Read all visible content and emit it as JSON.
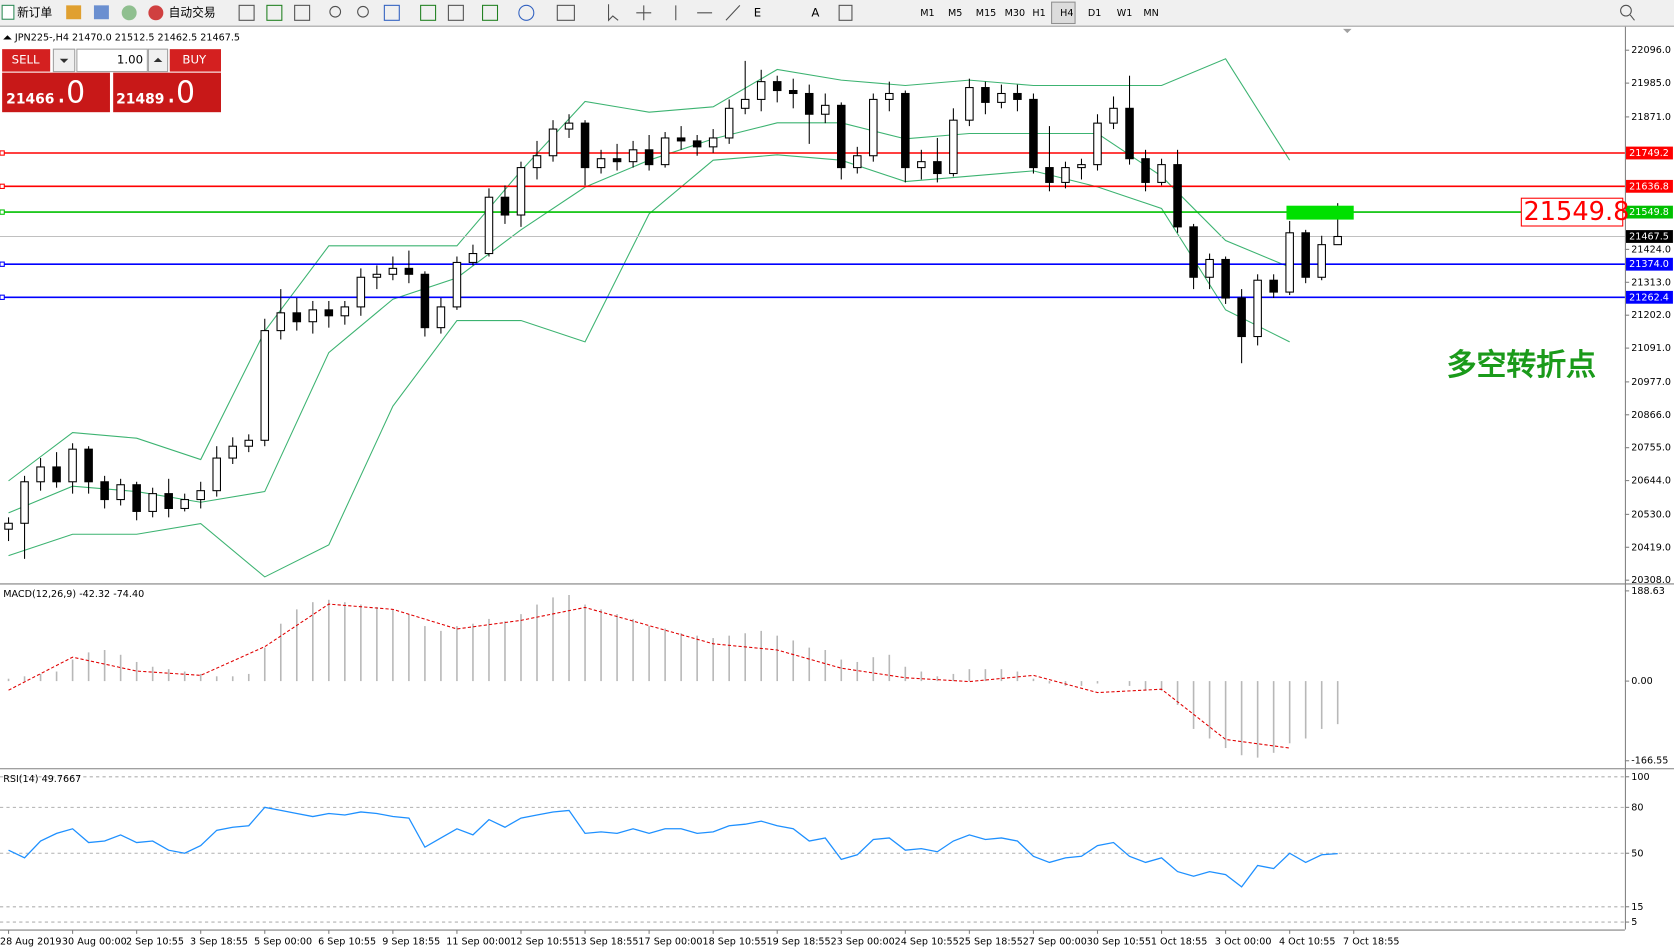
{
  "toolbar": {
    "new_order": "新订单",
    "auto_trading": "自动交易",
    "timeframes": [
      "M1",
      "M5",
      "M15",
      "M30",
      "H1",
      "H4",
      "D1",
      "W1",
      "MN"
    ]
  },
  "trade_panel": {
    "sell": "SELL",
    "lots": "1.00",
    "buy": "BUY",
    "bid": "21466",
    "bid_fraction": ".0",
    "ask": "21489",
    "ask_fraction": ".0"
  },
  "chart_data": [
    {
      "type": "candlestick",
      "title": "JPN225-,H4 21470.0 21512.5 21462.5 21467.5",
      "annotation": "多空转折点",
      "ylim": [
        20300.8,
        22168.1
      ],
      "yticks": [
        {
          "value": 22096,
          "label": "22096.0"
        },
        {
          "value": 21985,
          "label": "21985.0"
        },
        {
          "value": 21871,
          "label": "21871.0"
        },
        {
          "value": 21424,
          "label": "21424.0"
        },
        {
          "value": 21313,
          "label": "21313.0"
        },
        {
          "value": 21202,
          "label": "21202.0"
        },
        {
          "value": 21091,
          "label": "21091.0"
        },
        {
          "value": 20977,
          "label": "20977.0"
        },
        {
          "value": 20866,
          "label": "20866.0"
        },
        {
          "value": 20755,
          "label": "20755.0"
        },
        {
          "value": 20644,
          "label": "20644.0"
        },
        {
          "value": 20530,
          "label": "20530.0"
        },
        {
          "value": 20419,
          "label": "20419.0"
        },
        {
          "value": 20308,
          "label": "20308.0"
        }
      ],
      "xtick_labels": [
        "28 Aug 2019",
        "30 Aug 00:00",
        "2 Sep 10:55",
        "3 Sep 18:55",
        "5 Sep 00:00",
        "6 Sep 10:55",
        "9 Sep 18:55",
        "11 Sep 00:00",
        "12 Sep 10:55",
        "13 Sep 18:55",
        "17 Sep 00:00",
        "18 Sep 10:55",
        "19 Sep 18:55",
        "23 Sep 00:00",
        "24 Sep 10:55",
        "25 Sep 18:55",
        "27 Sep 00:00",
        "30 Sep 10:55",
        "1 Oct 18:55",
        "3 Oct 00:00",
        "4 Oct 10:55",
        "7 Oct 18:55"
      ],
      "levels": [
        {
          "value": 21749.2,
          "color": "#ff0000"
        },
        {
          "value": 21636.8,
          "color": "#ff0000"
        },
        {
          "value": 21549.8,
          "color": "#00c000"
        },
        {
          "value": 21374,
          "label": "21374.0",
          "color": "#0000ff"
        },
        {
          "value": 21262.4,
          "color": "#0000ff"
        }
      ],
      "current": 21467.5,
      "band_color": "#3cb371",
      "bands": {
        "upper": [
          20643,
          20806,
          20787,
          20715,
          21148,
          21436,
          21436,
          21436,
          21689,
          21923,
          21887,
          21905,
          22031,
          21995,
          21977,
          21995,
          21977,
          21977,
          21977,
          22067,
          21725
        ],
        "middle": [
          20535,
          20625,
          20607,
          20571,
          20607,
          21076,
          21256,
          21328,
          21490,
          21634,
          21725,
          21797,
          21851,
          21851,
          21797,
          21815,
          21815,
          21815,
          21671,
          21454,
          21364
        ],
        "lower": [
          20391,
          20463,
          20463,
          20499,
          20319,
          20427,
          20895,
          21184,
          21184,
          21112,
          21544,
          21725,
          21743,
          21725,
          21653,
          21671,
          21689,
          21635,
          21562,
          21220,
          21112
        ]
      },
      "candles": [
        [
          20480,
          20520,
          20440,
          20500
        ],
        [
          20500,
          20660,
          20380,
          20640
        ],
        [
          20640,
          20720,
          20610,
          20690
        ],
        [
          20690,
          20740,
          20620,
          20640
        ],
        [
          20640,
          20770,
          20600,
          20750
        ],
        [
          20750,
          20760,
          20600,
          20640
        ],
        [
          20640,
          20660,
          20550,
          20580
        ],
        [
          20580,
          20650,
          20560,
          20630
        ],
        [
          20630,
          20640,
          20510,
          20540
        ],
        [
          20540,
          20620,
          20520,
          20600
        ],
        [
          20600,
          20650,
          20520,
          20550
        ],
        [
          20550,
          20600,
          20540,
          20580
        ],
        [
          20580,
          20640,
          20550,
          20610
        ],
        [
          20610,
          20760,
          20590,
          20720
        ],
        [
          20720,
          20790,
          20700,
          20760
        ],
        [
          20760,
          20800,
          20740,
          20780
        ],
        [
          20780,
          21190,
          20760,
          21150
        ],
        [
          21150,
          21290,
          21120,
          21210
        ],
        [
          21210,
          21260,
          21150,
          21180
        ],
        [
          21180,
          21250,
          21140,
          21220
        ],
        [
          21220,
          21250,
          21160,
          21200
        ],
        [
          21200,
          21250,
          21170,
          21230
        ],
        [
          21230,
          21360,
          21200,
          21330
        ],
        [
          21330,
          21370,
          21290,
          21340
        ],
        [
          21340,
          21400,
          21320,
          21360
        ],
        [
          21360,
          21420,
          21310,
          21340
        ],
        [
          21340,
          21350,
          21130,
          21160
        ],
        [
          21160,
          21260,
          21140,
          21230
        ],
        [
          21230,
          21400,
          21220,
          21380
        ],
        [
          21380,
          21440,
          21370,
          21410
        ],
        [
          21410,
          21630,
          21400,
          21600
        ],
        [
          21600,
          21640,
          21510,
          21540
        ],
        [
          21540,
          21720,
          21500,
          21700
        ],
        [
          21700,
          21790,
          21660,
          21740
        ],
        [
          21740,
          21860,
          21720,
          21830
        ],
        [
          21830,
          21880,
          21800,
          21850
        ],
        [
          21850,
          21860,
          21640,
          21700
        ],
        [
          21700,
          21760,
          21680,
          21730
        ],
        [
          21730,
          21780,
          21690,
          21720
        ],
        [
          21720,
          21790,
          21700,
          21760
        ],
        [
          21760,
          21810,
          21690,
          21710
        ],
        [
          21710,
          21820,
          21700,
          21800
        ],
        [
          21800,
          21840,
          21760,
          21790
        ],
        [
          21790,
          21810,
          21740,
          21770
        ],
        [
          21770,
          21830,
          21750,
          21800
        ],
        [
          21800,
          21930,
          21780,
          21900
        ],
        [
          21900,
          22060,
          21880,
          21930
        ],
        [
          21930,
          22030,
          21890,
          21990
        ],
        [
          21990,
          22010,
          21920,
          21960
        ],
        [
          21960,
          22000,
          21900,
          21950
        ],
        [
          21950,
          21980,
          21780,
          21880
        ],
        [
          21880,
          21950,
          21850,
          21910
        ],
        [
          21910,
          21920,
          21660,
          21700
        ],
        [
          21700,
          21770,
          21680,
          21740
        ],
        [
          21740,
          21950,
          21720,
          21930
        ],
        [
          21930,
          21990,
          21890,
          21950
        ],
        [
          21950,
          21960,
          21650,
          21700
        ],
        [
          21700,
          21760,
          21660,
          21720
        ],
        [
          21720,
          21800,
          21650,
          21680
        ],
        [
          21680,
          21900,
          21670,
          21860
        ],
        [
          21860,
          22000,
          21840,
          21970
        ],
        [
          21970,
          21990,
          21880,
          21920
        ],
        [
          21920,
          21980,
          21900,
          21950
        ],
        [
          21950,
          21980,
          21890,
          21930
        ],
        [
          21930,
          21950,
          21680,
          21700
        ],
        [
          21700,
          21840,
          21620,
          21650
        ],
        [
          21650,
          21720,
          21630,
          21700
        ],
        [
          21700,
          21730,
          21660,
          21710
        ],
        [
          21710,
          21880,
          21690,
          21850
        ],
        [
          21850,
          21940,
          21830,
          21900
        ],
        [
          21900,
          22010,
          21710,
          21730
        ],
        [
          21730,
          21760,
          21620,
          21650
        ],
        [
          21650,
          21730,
          21640,
          21710
        ],
        [
          21710,
          21760,
          21480,
          21500
        ],
        [
          21500,
          21510,
          21290,
          21330
        ],
        [
          21330,
          21410,
          21290,
          21390
        ],
        [
          21390,
          21400,
          21240,
          21260
        ],
        [
          21260,
          21290,
          21040,
          21130
        ],
        [
          21130,
          21340,
          21100,
          21320
        ],
        [
          21320,
          21340,
          21260,
          21280
        ],
        [
          21280,
          21520,
          21270,
          21480
        ],
        [
          21480,
          21490,
          21310,
          21330
        ],
        [
          21330,
          21470,
          21320,
          21440
        ],
        [
          21440,
          21580,
          21440,
          21467.5
        ]
      ]
    },
    {
      "type": "macd",
      "title": "MACD(12,26,9) -42.32 -74.40",
      "ylim": [
        -177.7,
        197.6
      ],
      "yticks": [
        188.63,
        {
          "value": 0,
          "label": "0.00"
        },
        -166.55
      ],
      "color": "#b8b8b8",
      "signal_color": "#e00000",
      "values": [
        5,
        10,
        15,
        20,
        45,
        60,
        65,
        55,
        40,
        30,
        25,
        20,
        15,
        10,
        10,
        15,
        70,
        120,
        150,
        165,
        170,
        165,
        160,
        155,
        150,
        140,
        115,
        105,
        115,
        120,
        130,
        125,
        140,
        160,
        175,
        180,
        160,
        150,
        140,
        130,
        115,
        110,
        100,
        95,
        90,
        95,
        100,
        105,
        95,
        85,
        70,
        65,
        45,
        40,
        50,
        55,
        30,
        20,
        10,
        15,
        25,
        25,
        25,
        20,
        5,
        -5,
        -10,
        -10,
        -5,
        0,
        -10,
        -20,
        -20,
        -50,
        -100,
        -120,
        -140,
        -155,
        -160,
        -150,
        -130,
        -120,
        -100,
        -90
      ],
      "signal": [
        -19,
        50,
        21,
        12,
        72,
        161,
        150,
        109,
        127,
        154,
        116,
        78,
        65,
        27,
        7,
        -1,
        12,
        -24,
        -17,
        -122,
        -140
      ]
    },
    {
      "type": "line",
      "title": "RSI(14) 49.7667",
      "ylim": [
        1.5,
        103.5
      ],
      "yticks": [
        100,
        80,
        50,
        15,
        5
      ],
      "color": "#1e90ff",
      "values": [
        52,
        47,
        58,
        63,
        66,
        57,
        58,
        62,
        57,
        58,
        52,
        50,
        55,
        65,
        67,
        68,
        80,
        78,
        76,
        74,
        76,
        75,
        77,
        76,
        74,
        73,
        54,
        60,
        66,
        62,
        72,
        67,
        73,
        75,
        77,
        78,
        63,
        64,
        63,
        66,
        63,
        66,
        66,
        63,
        64,
        68,
        69,
        71,
        68,
        66,
        58,
        60,
        46,
        49,
        59,
        60,
        52,
        53,
        51,
        58,
        62,
        59,
        60,
        58,
        48,
        44,
        47,
        48,
        55,
        57,
        48,
        44,
        47,
        38,
        35,
        38,
        36,
        28,
        42,
        40,
        50,
        44,
        49,
        49.77
      ]
    }
  ]
}
